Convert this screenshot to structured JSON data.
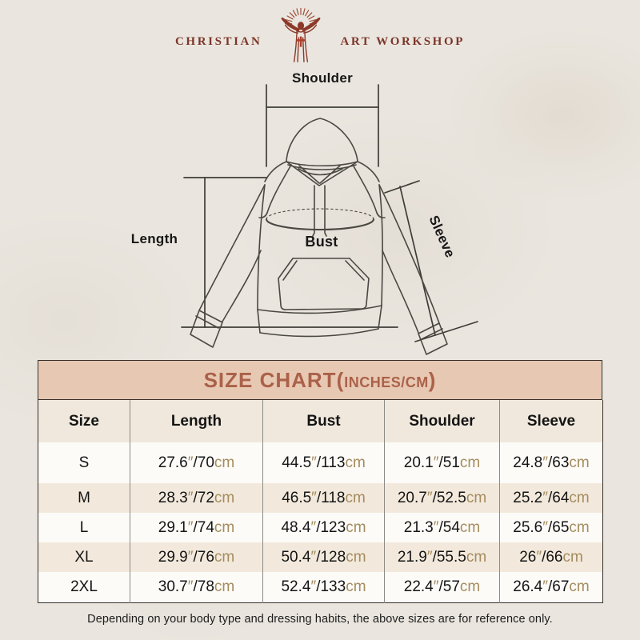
{
  "brand": {
    "name_left": "CHRISTIAN",
    "name_right": "ART WORKSHOP",
    "logo_icon": "jesus-with-rays-figure"
  },
  "diagram": {
    "shoulder_label": "Shoulder",
    "length_label": "Length",
    "bust_label": "Bust",
    "sleeve_label": "Sleeve"
  },
  "size_chart": {
    "title_open": "SIZE CHART(",
    "title_units": "INCHES/CM",
    "title_close": ")",
    "columns": [
      "Size",
      "Length",
      "Bust",
      "Shoulder",
      "Sleeve"
    ],
    "inch_mark": "″",
    "separator": "/",
    "cm_suffix": "cm",
    "rows": [
      {
        "size": "S",
        "measurements": [
          {
            "inches": "27.6",
            "cm": "70"
          },
          {
            "inches": "44.5",
            "cm": "113"
          },
          {
            "inches": "20.1",
            "cm": "51"
          },
          {
            "inches": "24.8",
            "cm": "63"
          }
        ]
      },
      {
        "size": "M",
        "measurements": [
          {
            "inches": "28.3",
            "cm": "72"
          },
          {
            "inches": "46.5",
            "cm": "118"
          },
          {
            "inches": "20.7",
            "cm": "52.5"
          },
          {
            "inches": "25.2",
            "cm": "64"
          }
        ]
      },
      {
        "size": "L",
        "measurements": [
          {
            "inches": "29.1",
            "cm": "74"
          },
          {
            "inches": "48.4",
            "cm": "123"
          },
          {
            "inches": "21.3",
            "cm": "54"
          },
          {
            "inches": "25.6",
            "cm": "65"
          }
        ]
      },
      {
        "size": "XL",
        "measurements": [
          {
            "inches": "29.9",
            "cm": "76"
          },
          {
            "inches": "50.4",
            "cm": "128"
          },
          {
            "inches": "21.9",
            "cm": "55.5"
          },
          {
            "inches": "26",
            "cm": "66"
          }
        ]
      },
      {
        "size": "2XL",
        "measurements": [
          {
            "inches": "30.7",
            "cm": "78"
          },
          {
            "inches": "52.4",
            "cm": "133"
          },
          {
            "inches": "22.4",
            "cm": "57"
          },
          {
            "inches": "26.4",
            "cm": "67"
          }
        ]
      }
    ]
  },
  "footer": {
    "note": "Depending on your body type and dressing habits, the above sizes are for reference only."
  },
  "colors": {
    "background": "#eae6df",
    "brand_maroon": "#7c352a",
    "band_background": "#e7c8b3",
    "band_text": "#ab6149",
    "header_row_background": "#f0e8dc",
    "row_alt_background": "#f2e9dc",
    "unit_text": "#a48c5e",
    "table_border_dark": "#35302a",
    "table_border_gray": "#8b8b86",
    "text_black": "#141414"
  }
}
